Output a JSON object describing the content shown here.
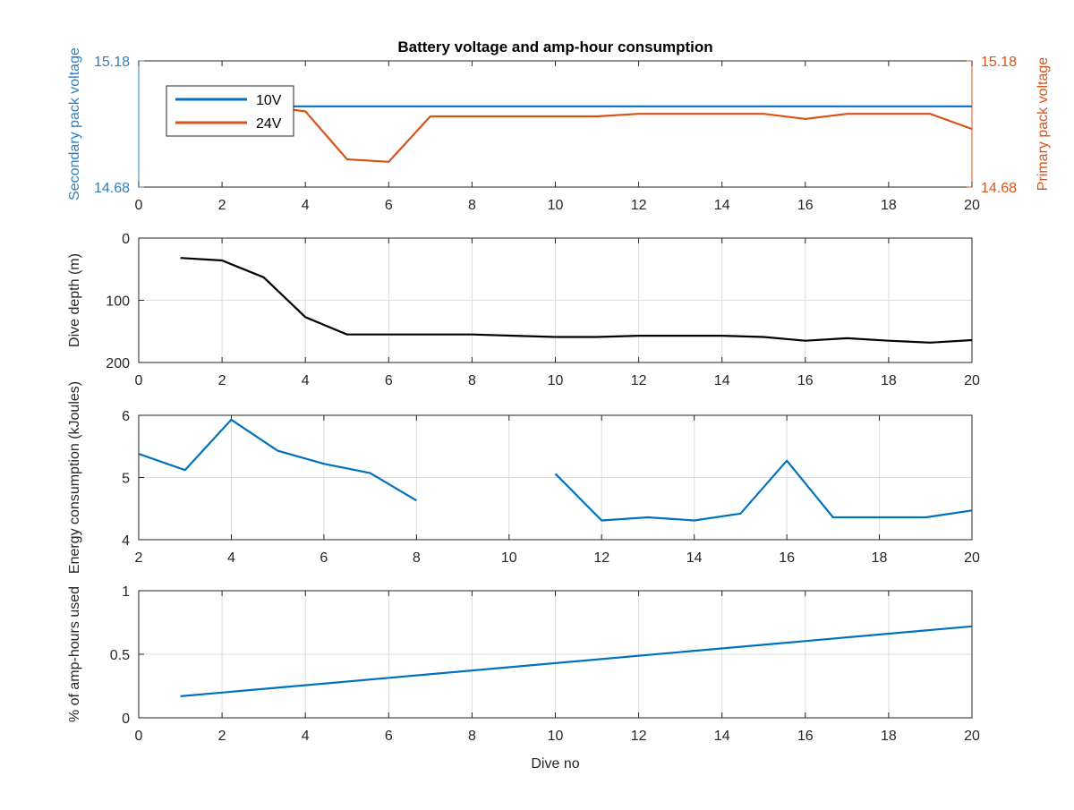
{
  "chart_data": [
    {
      "type": "line",
      "title": "Battery voltage and amp-hour consumption",
      "xlabel": "",
      "ylabel_left": "Secondary pack voltage",
      "ylabel_right": "Primary pack voltage",
      "xlim": [
        0,
        20
      ],
      "ylim_left": [
        14.68,
        15.18
      ],
      "ylim_right": [
        14.68,
        15.18
      ],
      "x_ticks": [
        0,
        2,
        4,
        6,
        8,
        10,
        12,
        14,
        16,
        18,
        20
      ],
      "y_ticks_left": [
        14.68,
        15.18
      ],
      "y_ticks_right": [
        14.68,
        15.18
      ],
      "left_axis_color": "#2f7fbf",
      "right_axis_color": "#d9541a",
      "grid": false,
      "legend": {
        "placement": "top-left"
      },
      "series": [
        {
          "name": "10V",
          "color": "#0072bd",
          "axis": "left",
          "x": [
            1,
            2,
            3,
            4,
            5,
            6,
            7,
            8,
            9,
            10,
            11,
            12,
            13,
            14,
            15,
            16,
            17,
            18,
            19,
            20
          ],
          "y": [
            15.0,
            15.0,
            15.0,
            15.0,
            15.0,
            15.0,
            15.0,
            15.0,
            15.0,
            15.0,
            15.0,
            15.0,
            15.0,
            15.0,
            15.0,
            15.0,
            15.0,
            15.0,
            15.0,
            15.0
          ]
        },
        {
          "name": "24V",
          "color": "#d95319",
          "axis": "right",
          "x": [
            1,
            2,
            3,
            4,
            5,
            6,
            7,
            8,
            9,
            10,
            11,
            12,
            13,
            14,
            15,
            16,
            17,
            18,
            19,
            20
          ],
          "y": [
            15.0,
            15.0,
            15.0,
            14.98,
            14.79,
            14.78,
            14.96,
            14.96,
            14.96,
            14.96,
            14.96,
            14.97,
            14.97,
            14.97,
            14.97,
            14.95,
            14.97,
            14.97,
            14.97,
            14.91
          ]
        }
      ]
    },
    {
      "type": "line",
      "title": "",
      "xlabel": "",
      "ylabel": "Dive depth (m)",
      "xlim": [
        0,
        20
      ],
      "ylim": [
        0,
        200
      ],
      "y_reversed": true,
      "x_ticks": [
        0,
        2,
        4,
        6,
        8,
        10,
        12,
        14,
        16,
        18,
        20
      ],
      "y_ticks": [
        0,
        100,
        200
      ],
      "grid": true,
      "series": [
        {
          "color": "#000000",
          "x": [
            1,
            2,
            3,
            4,
            5,
            6,
            7,
            8,
            9,
            10,
            11,
            12,
            13,
            14,
            15,
            16,
            17,
            18,
            19,
            20
          ],
          "y": [
            32,
            36,
            63,
            127,
            155,
            155,
            155,
            155,
            157,
            159,
            159,
            157,
            157,
            157,
            159,
            165,
            161,
            165,
            168,
            164
          ]
        }
      ]
    },
    {
      "type": "line",
      "title": "",
      "xlabel": "",
      "ylabel": "Energy consumption (kJoules)",
      "xlim": [
        2,
        20
      ],
      "ylim": [
        4,
        6
      ],
      "x_ticks": [
        2,
        4,
        6,
        8,
        10,
        12,
        14,
        16,
        18,
        20
      ],
      "y_ticks": [
        4,
        5,
        6
      ],
      "grid": true,
      "series": [
        {
          "color": "#0072bd",
          "x": [
            2,
            3,
            4,
            5,
            6,
            7,
            8,
            9,
            10,
            11,
            12,
            13,
            14,
            15,
            16,
            17,
            18,
            19,
            20
          ],
          "y": [
            5.38,
            5.12,
            5.93,
            5.43,
            5.22,
            5.07,
            4.63,
            null,
            null,
            5.06,
            4.31,
            4.36,
            4.31,
            4.42,
            5.27,
            4.36,
            4.36,
            4.36,
            4.47
          ]
        }
      ]
    },
    {
      "type": "line",
      "title": "",
      "xlabel": "Dive no",
      "ylabel": "% of amp-hours used",
      "xlim": [
        0,
        20
      ],
      "ylim": [
        0,
        1
      ],
      "x_ticks": [
        0,
        2,
        4,
        6,
        8,
        10,
        12,
        14,
        16,
        18,
        20
      ],
      "y_ticks": [
        0,
        0.5,
        1
      ],
      "grid": true,
      "series": [
        {
          "color": "#0072bd",
          "x": [
            1,
            20
          ],
          "y": [
            0.17,
            0.72
          ]
        }
      ]
    }
  ]
}
